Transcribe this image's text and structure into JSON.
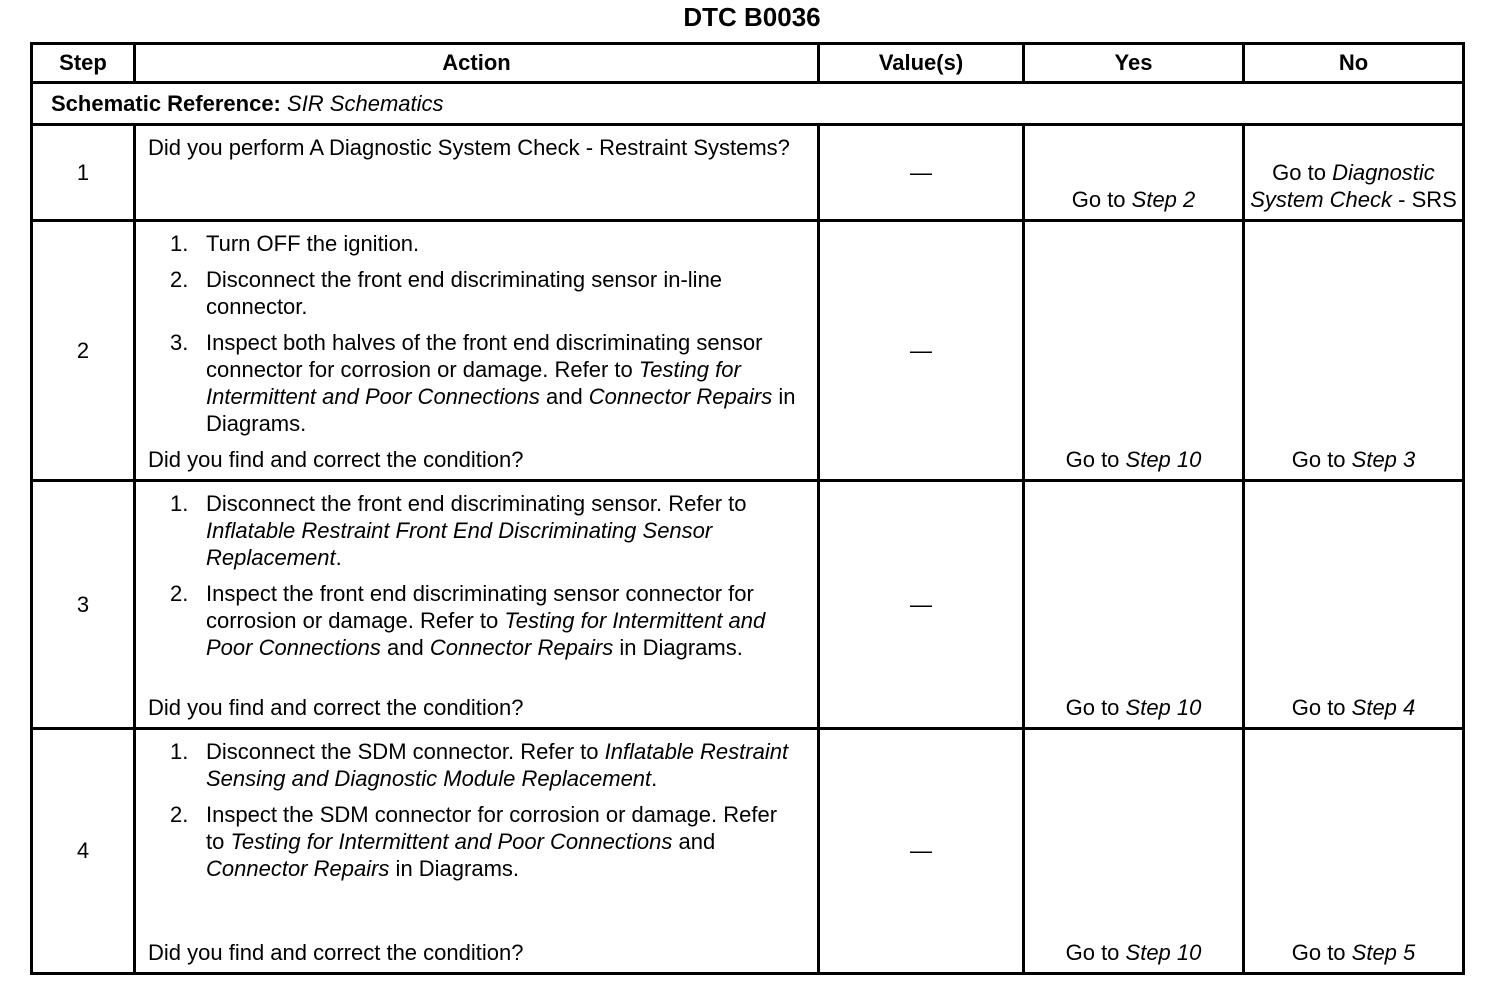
{
  "title": "DTC B0036",
  "headers": [
    "Step",
    "Action",
    "Value(s)",
    "Yes",
    "No"
  ],
  "schematic": {
    "label": "Schematic Reference:",
    "value": "SIR Schematics"
  },
  "rows": [
    {
      "step": "1",
      "intro": [
        {
          "t": "Did you perform A Diagnostic System Check - Restraint Systems?"
        }
      ],
      "items": [],
      "question": "",
      "value": "—",
      "yes": [
        {
          "t": "Go to "
        },
        {
          "t": "Step 2",
          "i": true
        }
      ],
      "no": [
        {
          "t": "Go to "
        },
        {
          "t": "Diagnostic System Check",
          "i": true
        },
        {
          "t": " - SRS"
        }
      ]
    },
    {
      "step": "2",
      "intro": [],
      "items": [
        [
          {
            "t": "Turn OFF the ignition."
          }
        ],
        [
          {
            "t": "Disconnect the front end discriminating sensor in-line connector."
          }
        ],
        [
          {
            "t": "Inspect both halves of the front end discriminating sensor connector for corrosion or damage. Refer to "
          },
          {
            "t": "Testing for Intermittent and Poor Connections",
            "i": true
          },
          {
            "t": " and "
          },
          {
            "t": "Connector Repairs",
            "i": true
          },
          {
            "t": " in Diagrams."
          }
        ]
      ],
      "question": "Did you find and correct the condition?",
      "value": "—",
      "yes": [
        {
          "t": "Go to "
        },
        {
          "t": "Step 10",
          "i": true
        }
      ],
      "no": [
        {
          "t": "Go to "
        },
        {
          "t": "Step 3",
          "i": true
        }
      ]
    },
    {
      "step": "3",
      "intro": [],
      "items": [
        [
          {
            "t": "Disconnect the front end discriminating sensor. Refer to "
          },
          {
            "t": "Inflatable Restraint Front End Discriminating Sensor Replacement",
            "i": true
          },
          {
            "t": "."
          }
        ],
        [
          {
            "t": "Inspect the front end discriminating sensor connector for corrosion or damage. Refer to "
          },
          {
            "t": "Testing for Intermittent and Poor Connections",
            "i": true
          },
          {
            "t": " and "
          },
          {
            "t": "Connector Repairs",
            "i": true
          },
          {
            "t": " in Diagrams."
          }
        ]
      ],
      "question": "Did you find and correct the condition?",
      "value": "—",
      "yes": [
        {
          "t": "Go to "
        },
        {
          "t": "Step 10",
          "i": true
        }
      ],
      "no": [
        {
          "t": "Go to "
        },
        {
          "t": "Step 4",
          "i": true
        }
      ]
    },
    {
      "step": "4",
      "intro": [],
      "items": [
        [
          {
            "t": "Disconnect the SDM connector. Refer to "
          },
          {
            "t": "Inflatable Restraint Sensing and Diagnostic Module Replacement",
            "i": true
          },
          {
            "t": "."
          }
        ],
        [
          {
            "t": "Inspect the SDM connector for corrosion or damage. Refer to "
          },
          {
            "t": "Testing for Intermittent and Poor Connections",
            "i": true
          },
          {
            "t": " and "
          },
          {
            "t": "Connector Repairs",
            "i": true
          },
          {
            "t": " in Diagrams."
          }
        ]
      ],
      "question": "Did you find and correct the condition?",
      "value": "—",
      "yes": [
        {
          "t": "Go to "
        },
        {
          "t": "Step 10",
          "i": true
        }
      ],
      "no": [
        {
          "t": "Go to "
        },
        {
          "t": "Step 5",
          "i": true
        }
      ]
    }
  ]
}
